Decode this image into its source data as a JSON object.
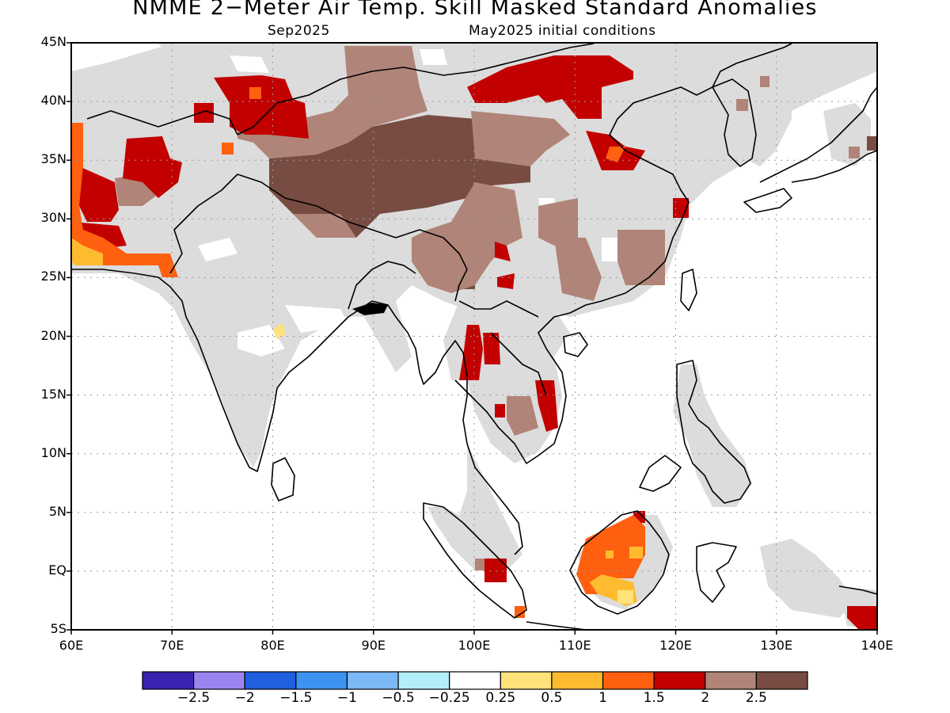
{
  "title": "NMME 2−Meter Air Temp. Skill Masked Standard Anomalies",
  "subtitle_left": "Sep2025",
  "subtitle_right": "May2025 initial conditions",
  "lat_labels": [
    "45N",
    "40N",
    "35N",
    "30N",
    "25N",
    "20N",
    "15N",
    "10N",
    "5N",
    "EQ",
    "5S"
  ],
  "lon_labels": [
    "60E",
    "70E",
    "80E",
    "90E",
    "100E",
    "110E",
    "120E",
    "130E",
    "140E"
  ],
  "colorbar": {
    "colors": [
      "#3a22b0",
      "#9b84f0",
      "#1f5fe0",
      "#3e93f0",
      "#7bb8f5",
      "#b4eefa",
      "#ffffff",
      "#ffe27a",
      "#ffbb30",
      "#ff6010",
      "#c20000",
      "#b08478",
      "#784c42"
    ],
    "labels": [
      "−2.5",
      "−2",
      "−1.5",
      "−1",
      "−0.5",
      "−0.25",
      "0.25",
      "0.5",
      "1",
      "1.5",
      "2",
      "2.5"
    ]
  },
  "map_colors": {
    "land_masked": "#dcdcdc",
    "grid": "#9a9a9a",
    "coast": "#000000"
  }
}
